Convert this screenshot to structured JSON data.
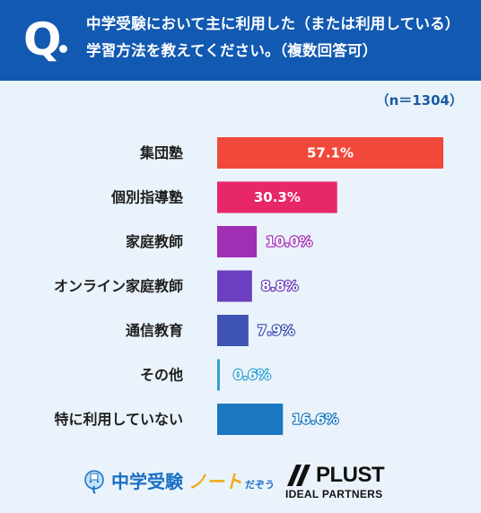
{
  "header": {
    "q_label": "Q",
    "question": "中学受験において主に利用した（または利用している）学習方法を教えてください。（複数回答可）"
  },
  "sample_size": "（n＝1304）",
  "chart_data": {
    "type": "bar",
    "orientation": "horizontal",
    "categories": [
      "集団塾",
      "個別指導塾",
      "家庭教師",
      "オンライン家庭教師",
      "通信教育",
      "その他",
      "特に利用していない"
    ],
    "values": [
      57.1,
      30.3,
      10.0,
      8.8,
      7.9,
      0.6,
      16.6
    ],
    "value_labels": [
      "57.1%",
      "30.3%",
      "10.0%",
      "8.8%",
      "7.9%",
      "0.6%",
      "16.6%"
    ],
    "colors": [
      "#f0483a",
      "#e8266a",
      "#a12fb6",
      "#6b3fbf",
      "#3f52b5",
      "#2fa1d4",
      "#1b77bf"
    ],
    "unit": "%",
    "xlim": [
      0,
      60
    ],
    "grid": false
  },
  "footer": {
    "logo1_main": "中学受験",
    "logo1_sub": "ノート",
    "logo1_suffix": "だぞう",
    "logo2_main": "PLUST",
    "logo2_sub": "IDEAL PARTNERS"
  }
}
